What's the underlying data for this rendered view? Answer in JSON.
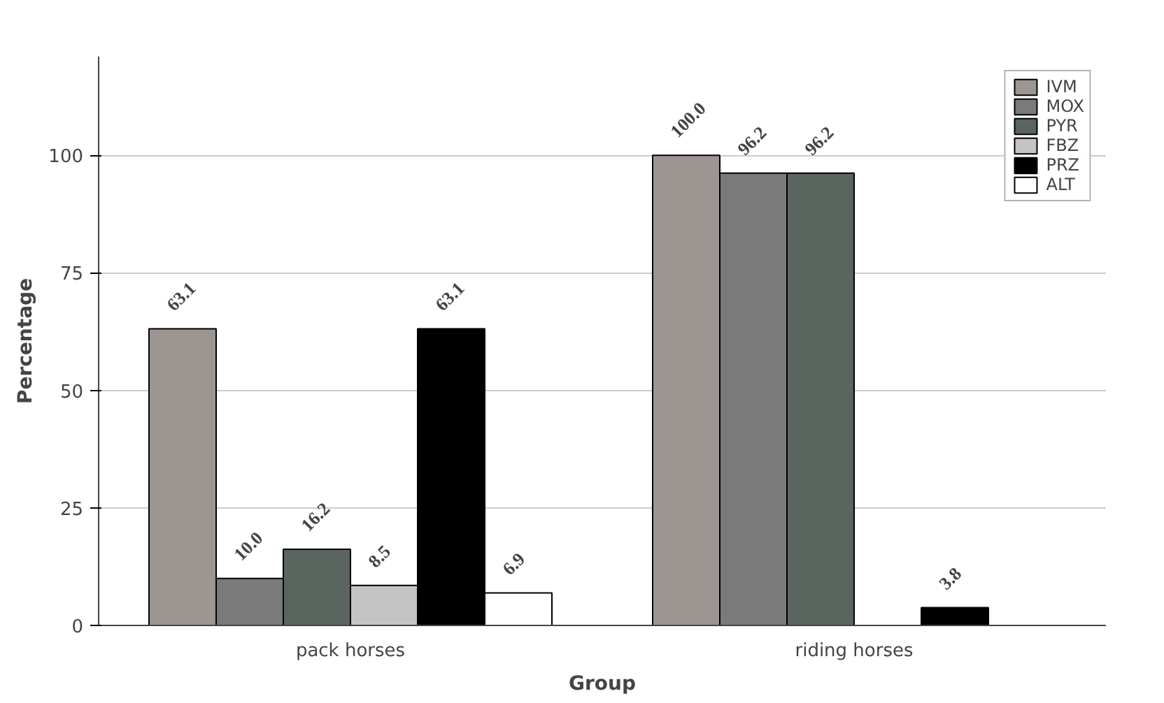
{
  "chart_data": {
    "type": "bar",
    "categories": [
      "pack horses",
      "riding horses"
    ],
    "xlabel": "Group",
    "ylabel": "Percentage",
    "ylim": [
      0,
      121
    ],
    "yticks": [
      0,
      25,
      50,
      75,
      100
    ],
    "grid": "y",
    "legend": "top right",
    "series": [
      {
        "name": "IVM",
        "color": "#9d9592",
        "values": [
          63.1,
          100.0
        ],
        "value_labels": [
          "63.1",
          "100.0"
        ]
      },
      {
        "name": "MOX",
        "color": "#7a7a7a",
        "values": [
          10.0,
          96.2
        ],
        "value_labels": [
          "10.0",
          "96.2"
        ]
      },
      {
        "name": "PYR",
        "color": "#5b6560",
        "values": [
          16.2,
          96.2
        ],
        "value_labels": [
          "16.2",
          "96.2"
        ]
      },
      {
        "name": "FBZ",
        "color": "#c4c4c4",
        "values": [
          8.5,
          null
        ],
        "value_labels": [
          "8.5",
          null
        ]
      },
      {
        "name": "PRZ",
        "color": "#000000",
        "values": [
          63.1,
          3.8
        ],
        "value_labels": [
          "63.1",
          "3.8"
        ]
      },
      {
        "name": "ALT",
        "color": "#ffffff",
        "values": [
          6.9,
          null
        ],
        "value_labels": [
          "6.9",
          null
        ]
      }
    ]
  }
}
